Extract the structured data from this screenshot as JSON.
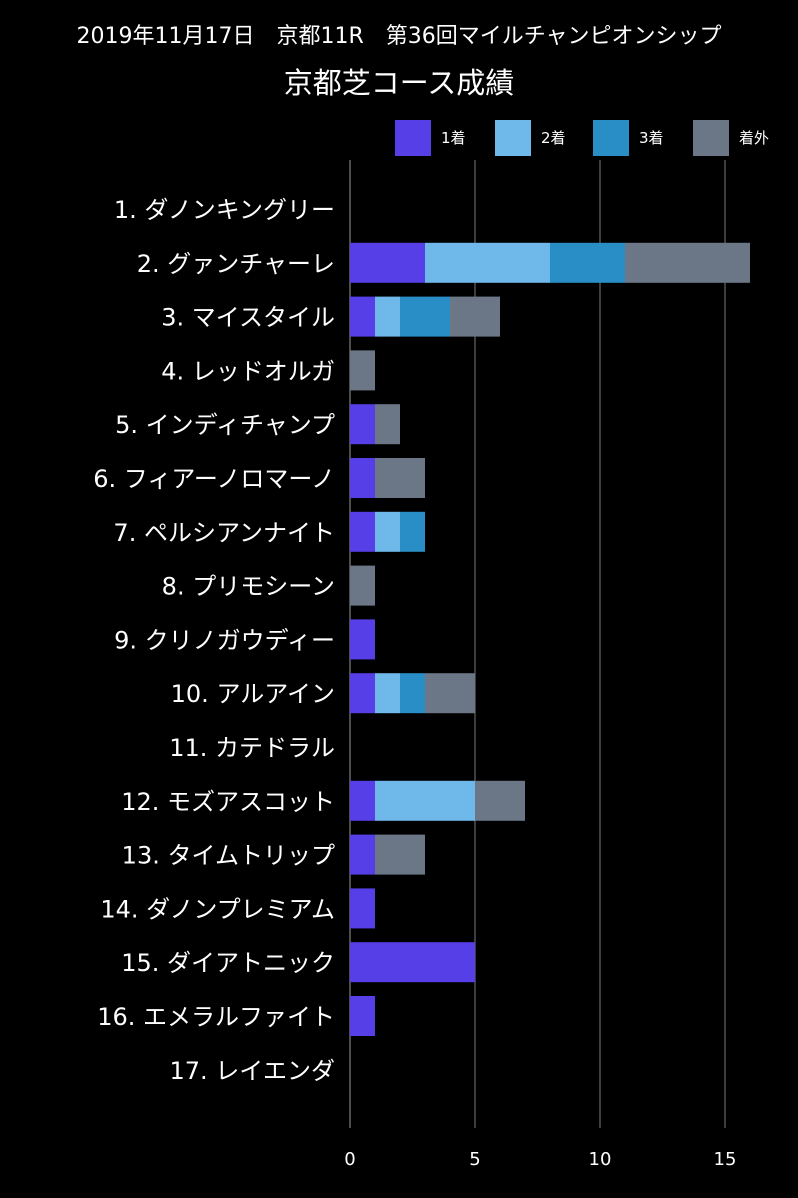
{
  "subtitle": "2019年11月17日　京都11R　第36回マイルチャンピオンシップ",
  "legend": [
    {
      "label": "1着",
      "color": "#563fe6"
    },
    {
      "label": "2着",
      "color": "#6fb9ea"
    },
    {
      "label": "3着",
      "color": "#2a8ec6"
    },
    {
      "label": "着外",
      "color": "#6b7787"
    }
  ],
  "chart_data": {
    "type": "bar",
    "orientation": "horizontal",
    "stacked": true,
    "title": "京都芝コース成績",
    "categories": [
      "1. ダノンキングリー",
      "2. グァンチャーレ",
      "3. マイスタイル",
      "4. レッドオルガ",
      "5. インディチャンプ",
      "6. フィアーノロマーノ",
      "7. ペルシアンナイト",
      "8. プリモシーン",
      "9. クリノガウディー",
      "10. アルアイン",
      "11. カテドラル",
      "12. モズアスコット",
      "13. タイムトリップ",
      "14. ダノンプレミアム",
      "15. ダイアトニック",
      "16. エメラルファイト",
      "17. レイエンダ"
    ],
    "series": [
      {
        "name": "1着",
        "color": "#563fe6",
        "values": [
          0,
          3,
          1,
          0,
          1,
          1,
          1,
          0,
          1,
          1,
          0,
          1,
          1,
          1,
          5,
          1,
          0
        ]
      },
      {
        "name": "2着",
        "color": "#6fb9ea",
        "values": [
          0,
          5,
          1,
          0,
          0,
          0,
          1,
          0,
          0,
          1,
          0,
          4,
          0,
          0,
          0,
          0,
          0
        ]
      },
      {
        "name": "3着",
        "color": "#2a8ec6",
        "values": [
          0,
          3,
          2,
          0,
          0,
          0,
          1,
          0,
          0,
          1,
          0,
          0,
          0,
          0,
          0,
          0,
          0
        ]
      },
      {
        "name": "着外",
        "color": "#6b7787",
        "values": [
          0,
          5,
          2,
          1,
          1,
          2,
          0,
          1,
          0,
          2,
          0,
          2,
          2,
          0,
          0,
          0,
          0
        ]
      }
    ],
    "xlim": [
      0,
      16
    ],
    "xticks": [
      "0",
      "5",
      "10",
      "15"
    ],
    "grid": true,
    "legend_position": "top-right"
  }
}
